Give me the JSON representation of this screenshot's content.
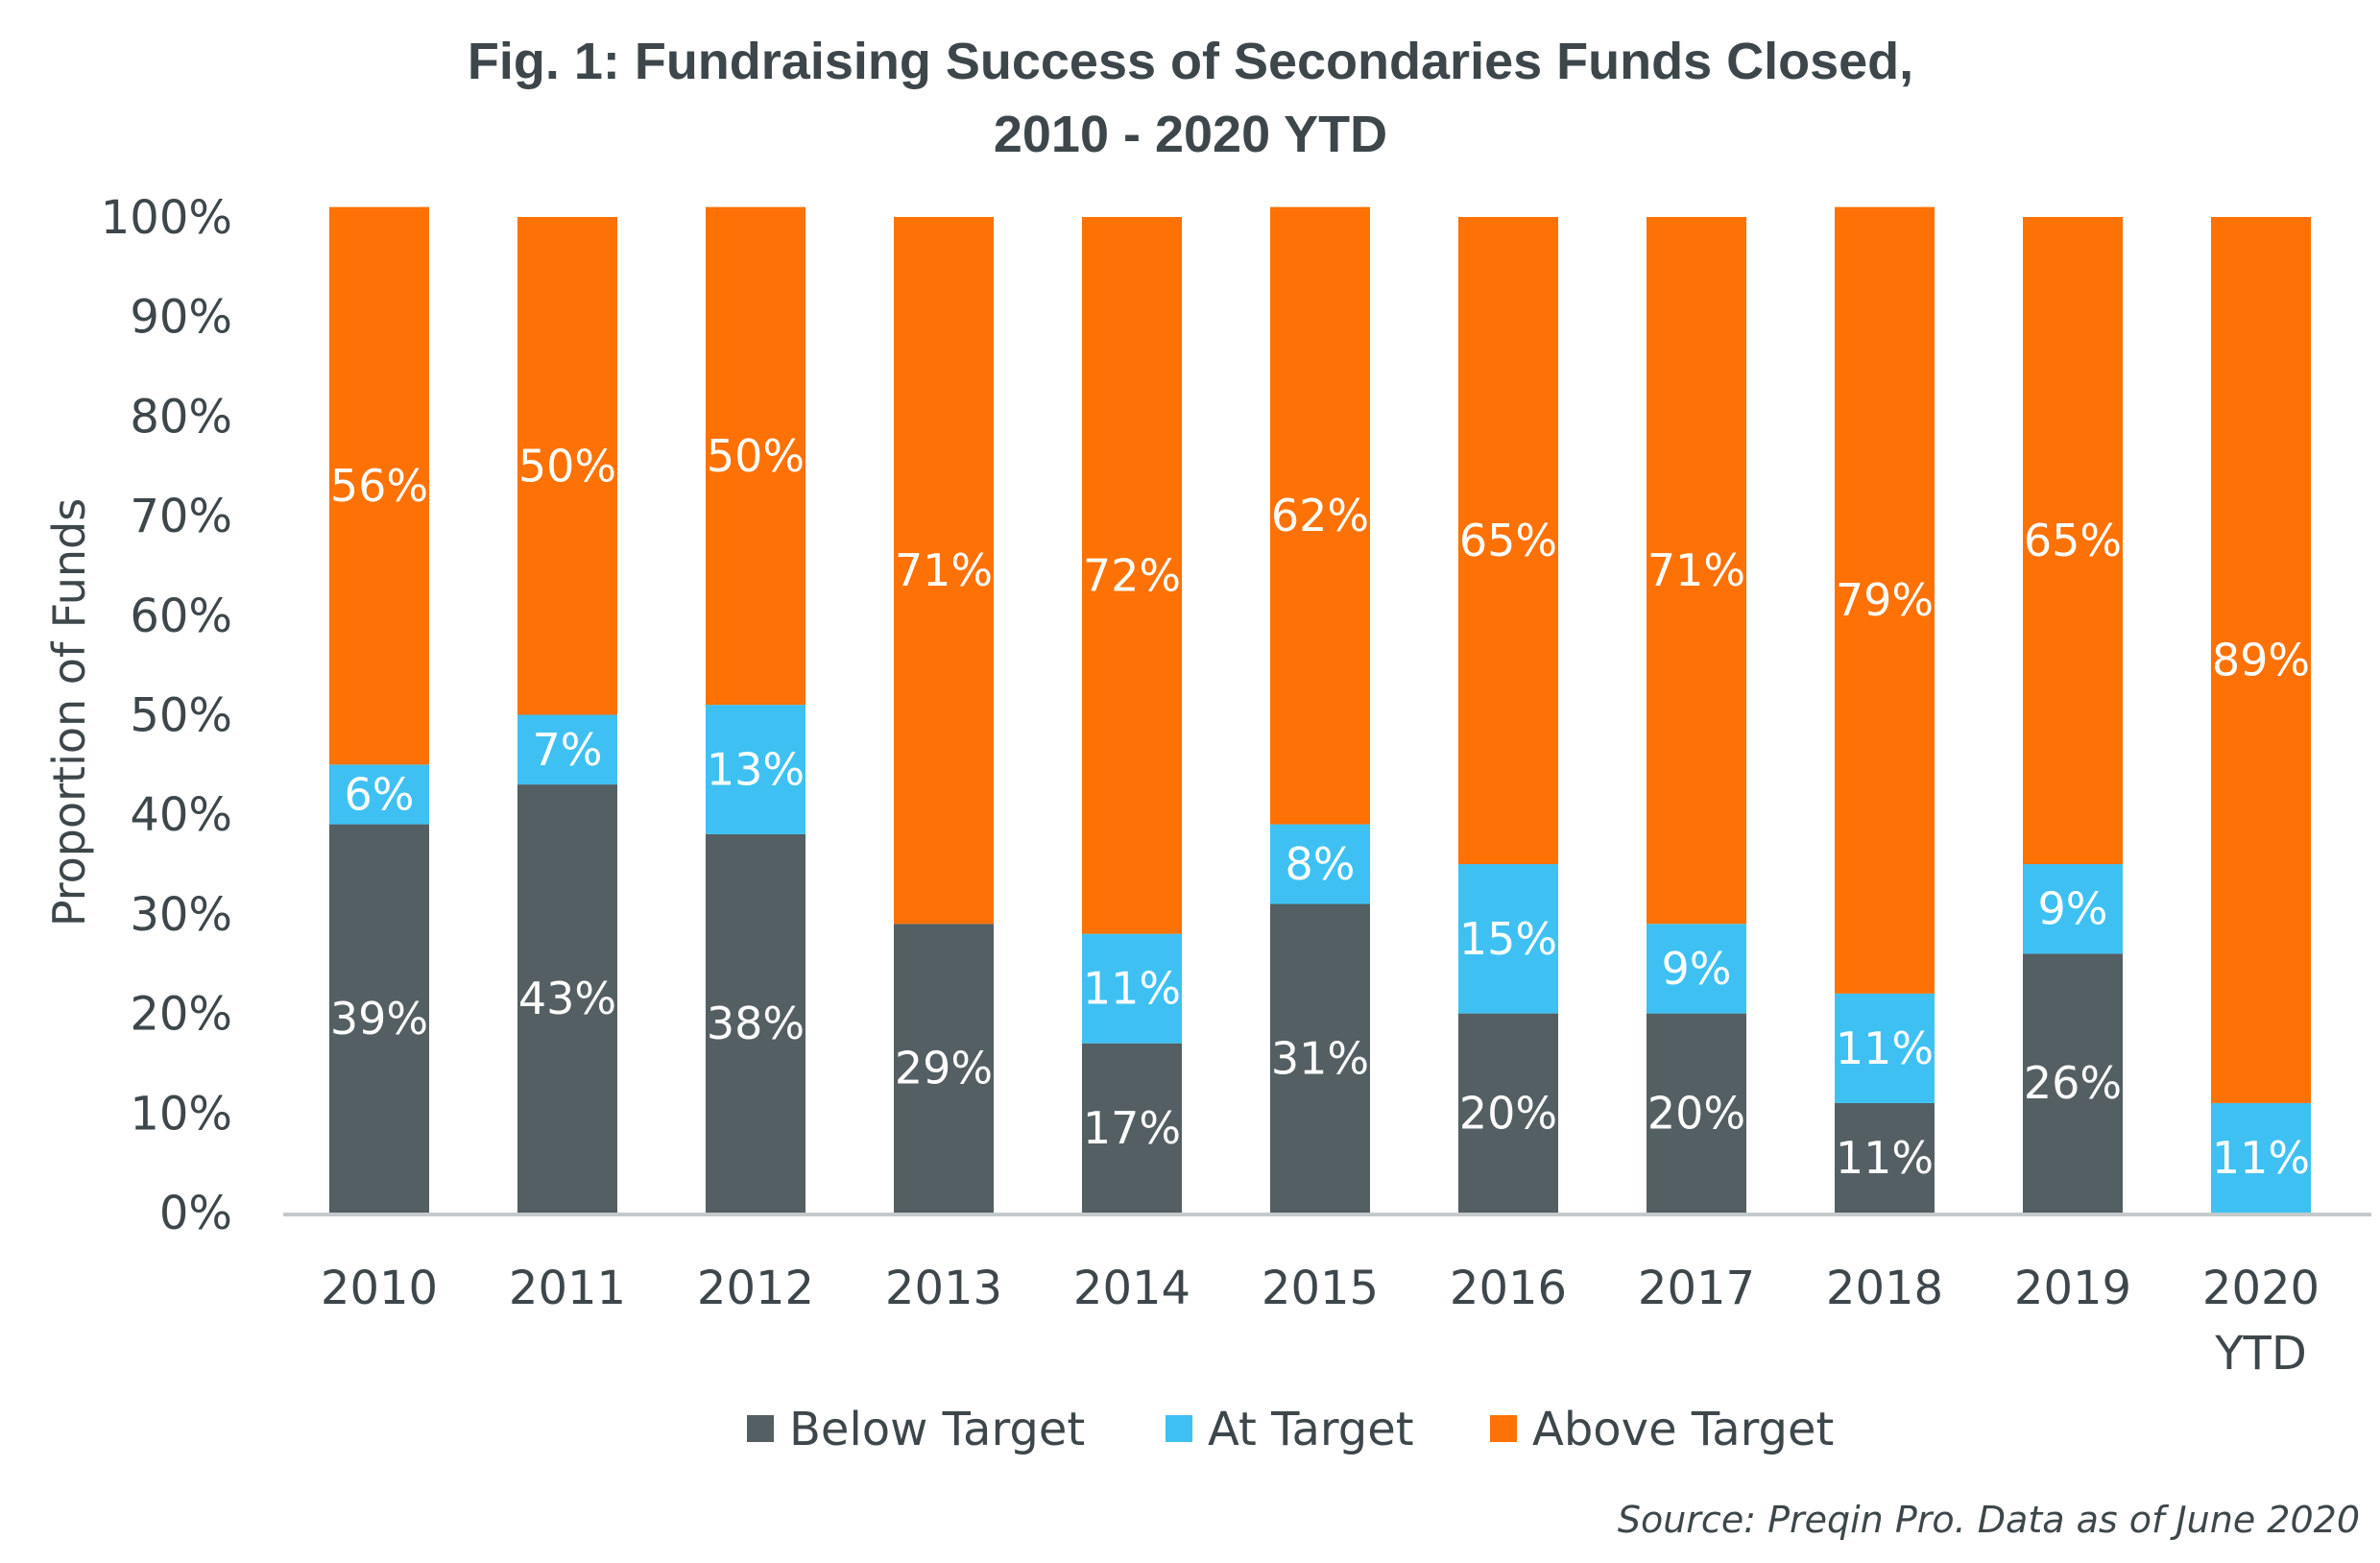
{
  "chart_data": {
    "type": "bar",
    "stacked": true,
    "title": [
      "Fig. 1: Fundraising Success of Secondaries Funds Closed,",
      "2010 - 2020 YTD"
    ],
    "xlabel": "",
    "ylabel": "Proportion of Funds",
    "ylim": [
      0,
      100
    ],
    "y_ticks": [
      "0%",
      "10%",
      "20%",
      "30%",
      "40%",
      "50%",
      "60%",
      "70%",
      "80%",
      "90%",
      "100%"
    ],
    "categories": [
      "2010",
      "2011",
      "2012",
      "2013",
      "2014",
      "2015",
      "2016",
      "2017",
      "2018",
      "2019",
      "2020 YTD"
    ],
    "category_labels": [
      [
        "2010"
      ],
      [
        "2011"
      ],
      [
        "2012"
      ],
      [
        "2013"
      ],
      [
        "2014"
      ],
      [
        "2015"
      ],
      [
        "2016"
      ],
      [
        "2017"
      ],
      [
        "2018"
      ],
      [
        "2019"
      ],
      [
        "2020",
        "YTD"
      ]
    ],
    "series": [
      {
        "name": "Below Target",
        "color": "#535f63",
        "values": [
          39,
          43,
          38,
          29,
          17,
          31,
          20,
          20,
          11,
          26,
          0
        ],
        "labels": [
          "39%",
          "43%",
          "38%",
          "29%",
          "17%",
          "31%",
          "20%",
          "20%",
          "11%",
          "26%",
          ""
        ]
      },
      {
        "name": "At Target",
        "color": "#3ec1f2",
        "values": [
          6,
          7,
          13,
          0,
          11,
          8,
          15,
          9,
          11,
          9,
          11
        ],
        "labels": [
          "6%",
          "7%",
          "13%",
          "",
          "11%",
          "8%",
          "15%",
          "9%",
          "11%",
          "9%",
          "11%"
        ]
      },
      {
        "name": "Above Target",
        "color": "#fe7104",
        "values": [
          56,
          50,
          50,
          71,
          72,
          62,
          65,
          71,
          79,
          65,
          89
        ],
        "labels": [
          "56%",
          "50%",
          "50%",
          "71%",
          "72%",
          "62%",
          "65%",
          "71%",
          "79%",
          "65%",
          "89%"
        ]
      }
    ],
    "grid": false,
    "legend": "bottom-center",
    "source": "Source: Preqin Pro. Data as of June 2020"
  },
  "colors": {
    "text": "#3d474b",
    "axis_line": "#c4c9cb"
  }
}
